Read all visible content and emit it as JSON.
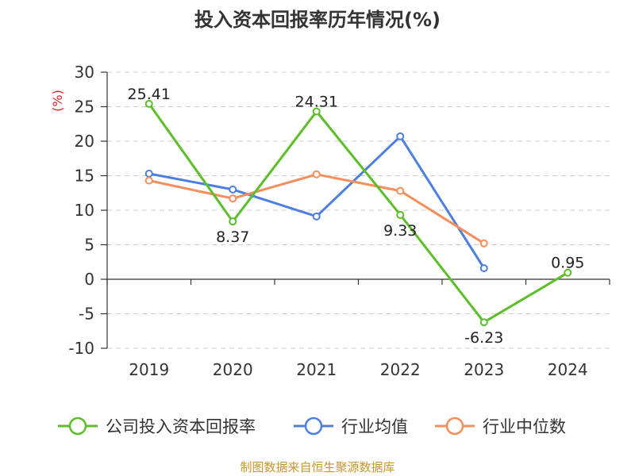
{
  "chart_data": {
    "type": "line",
    "title": "投入资本回报率历年情况(%)",
    "ylabel": "(%)",
    "categories": [
      "2019",
      "2020",
      "2021",
      "2022",
      "2023",
      "2024"
    ],
    "ylim": [
      -10,
      30
    ],
    "yticks": [
      "30",
      "25",
      "20",
      "15",
      "10",
      "5",
      "0",
      "-5",
      "-10"
    ],
    "grid": true,
    "legend_position": "bottom",
    "series": [
      {
        "name": "公司投入资本回报率",
        "color": "#5cbf2a",
        "values": [
          25.41,
          8.37,
          24.31,
          9.33,
          -6.23,
          0.95
        ],
        "labels": [
          "25.41",
          "8.37",
          "24.31",
          "9.33",
          "-6.23",
          "0.95"
        ]
      },
      {
        "name": "行业均值",
        "color": "#4d7fe0",
        "values": [
          15.3,
          13.0,
          9.1,
          20.7,
          1.6,
          null
        ]
      },
      {
        "name": "行业中位数",
        "color": "#f58e5a",
        "values": [
          14.3,
          11.7,
          15.2,
          12.8,
          5.2,
          null
        ]
      }
    ]
  },
  "source": "制图数据来自恒生聚源数据库",
  "colors": {
    "unit": "#e02020",
    "source": "#c9962a",
    "axis": "#333333",
    "grid": "#cccccc"
  }
}
